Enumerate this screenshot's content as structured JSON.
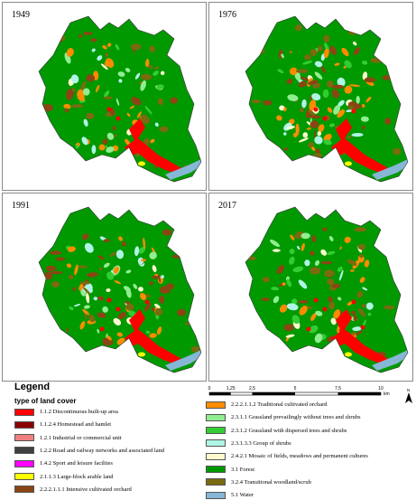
{
  "panels": [
    {
      "year": "1949"
    },
    {
      "year": "1976"
    },
    {
      "year": "1991"
    },
    {
      "year": "2017"
    }
  ],
  "legend": {
    "title": "Legend",
    "subtitle": "type of land cover",
    "items_left": [
      {
        "label": "1.1.2 Discontinuous built-up area",
        "color": "#ff0000"
      },
      {
        "label": "1.1.2.4 Homestead and hamlet",
        "color": "#8b0000"
      },
      {
        "label": "1.2.1 Industrial or commercial unit",
        "color": "#f08080"
      },
      {
        "label": "1.2.2 Road and railway networks and associated land",
        "color": "#404040"
      },
      {
        "label": "1.4.2 Sport and leisure facilites",
        "color": "#ff00ff"
      },
      {
        "label": "2.1.1.3 Large-block arable land",
        "color": "#ffff00"
      },
      {
        "label": "2.2.2.1.1.1 Intensive cultivated orchard",
        "color": "#8b4513"
      }
    ],
    "items_right": [
      {
        "label": "2.2.2.1.1.2 Traditional cultivated orchard",
        "color": "#ff8c00"
      },
      {
        "label": "2.3.1.1 Grassland prevailingly without trees and shrubs",
        "color": "#90ee90"
      },
      {
        "label": "2.3.1.2 Grassland with dispersed trees and shrubs",
        "color": "#32cd32"
      },
      {
        "label": "2.3.1.3.3 Group of shrubs",
        "color": "#aff5e6"
      },
      {
        "label": "2.4.2.1 Mosaic of fields, meadows and permanent cultures",
        "color": "#fffacd"
      },
      {
        "label": "3.1 Forest",
        "color": "#009900"
      },
      {
        "label": "3.2.4 Transitional woodland/scrub",
        "color": "#7a6a10"
      },
      {
        "label": "5.1 Water",
        "color": "#87b7d6"
      }
    ]
  },
  "scale": {
    "ticks": [
      "0",
      "1,25",
      "2,5",
      "5",
      "7,5",
      "10"
    ],
    "unit": "km"
  },
  "north_label": "N"
}
